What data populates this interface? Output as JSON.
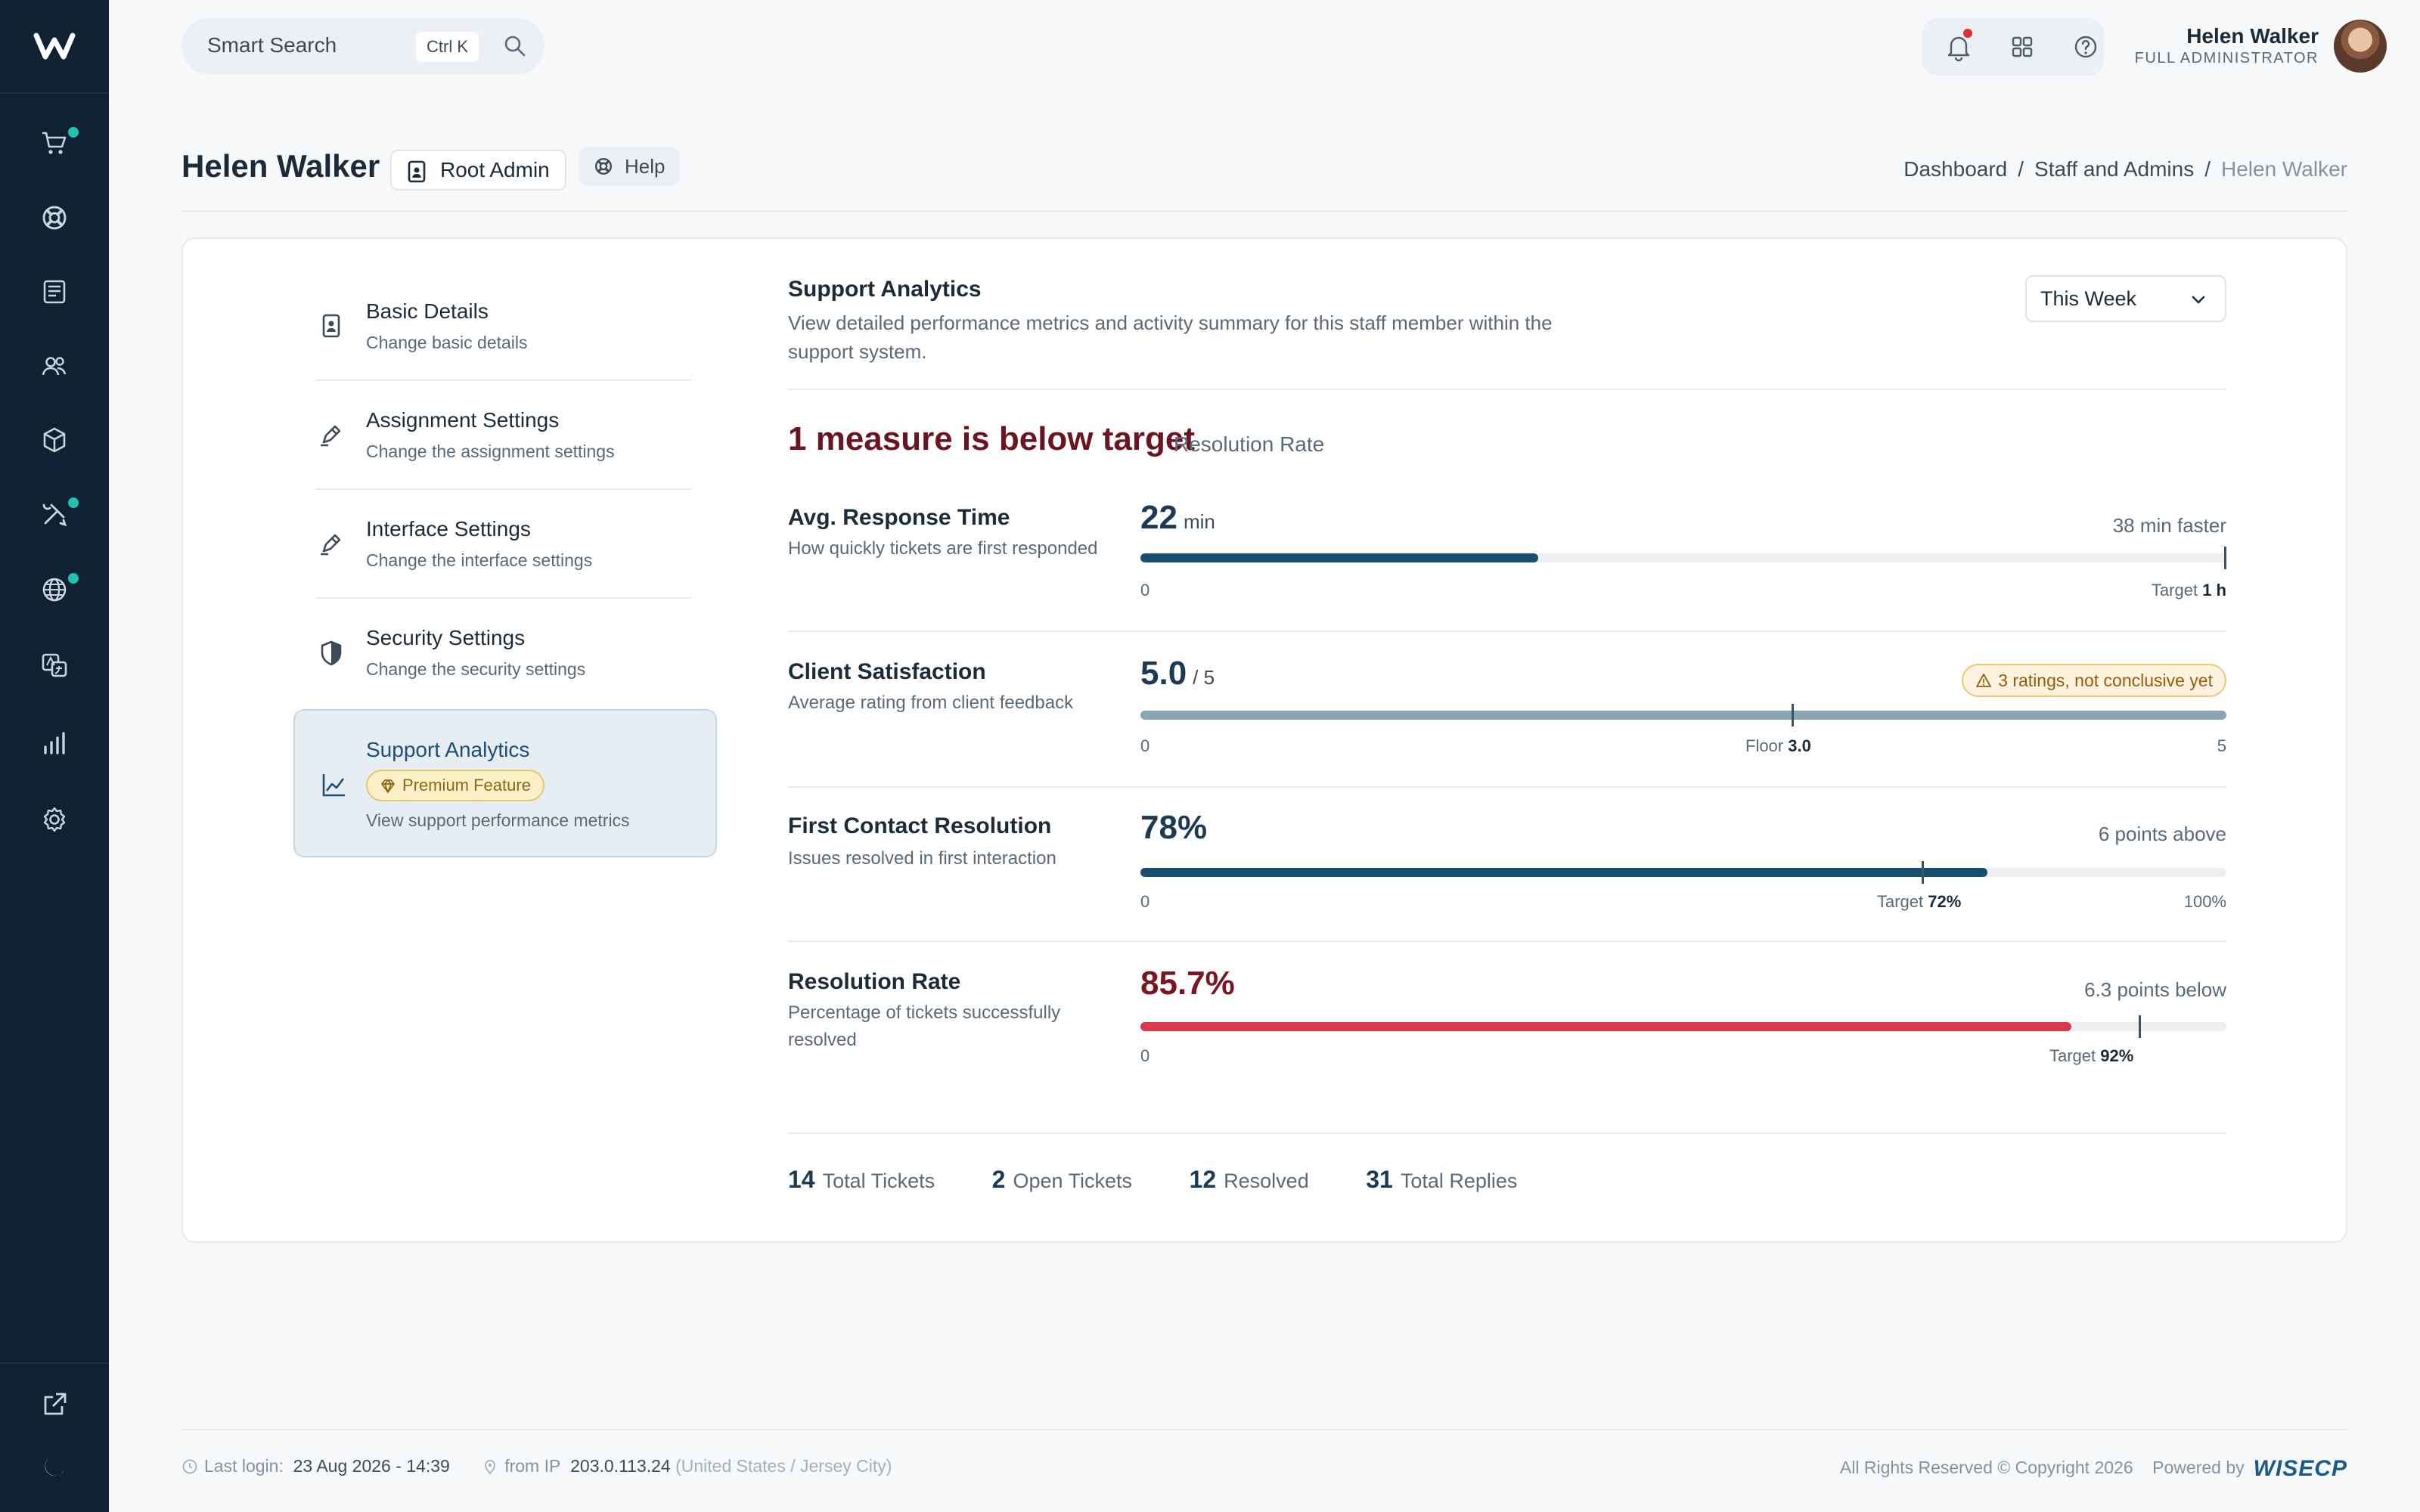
{
  "search": {
    "placeholder": "Smart Search",
    "shortcut": "Ctrl K"
  },
  "user": {
    "name": "Helen Walker",
    "role": "FULL ADMINISTRATOR"
  },
  "page": {
    "title": "Helen Walker",
    "role_badge": "Root Admin",
    "help_label": "Help"
  },
  "breadcrumb": [
    "Dashboard",
    "Staff and Admins",
    "Helen Walker"
  ],
  "menu": [
    {
      "title": "Basic Details",
      "subtitle": "Change basic details",
      "icon": "id-card-icon"
    },
    {
      "title": "Assignment Settings",
      "subtitle": "Change the assignment settings",
      "icon": "pen-icon"
    },
    {
      "title": "Interface Settings",
      "subtitle": "Change the interface settings",
      "icon": "pen-icon"
    },
    {
      "title": "Security Settings",
      "subtitle": "Change the security settings",
      "icon": "shield-icon"
    },
    {
      "title": "Support Analytics",
      "badge": "Premium Feature",
      "subtitle": "View support performance metrics",
      "icon": "chart-line-icon",
      "active": true
    }
  ],
  "analytics": {
    "title": "Support Analytics",
    "description": "View detailed performance metrics and activity summary for this staff member within the support system.",
    "period": "This Week",
    "alert_title": "1 measure is below target",
    "alert_tag": "Resolution Rate",
    "metrics": [
      {
        "name": "Avg. Response Time",
        "description": "How quickly tickets are first responded",
        "value": "22",
        "unit": "min",
        "note": "38 min faster",
        "fill_fraction": 0.366,
        "marker_fraction": 1.0,
        "scale_min": "0",
        "marker_label": "Target",
        "marker_value": "1 h",
        "fill_color": "#184d70"
      },
      {
        "name": "Client Satisfaction",
        "description": "Average rating from client feedback",
        "value": "5.0",
        "unit": "/ 5",
        "warning": "3 ratings, not conclusive yet",
        "fill_fraction": 1.0,
        "marker_fraction": 0.6,
        "scale_min": "0",
        "scale_max": "5",
        "marker_label": "Floor",
        "marker_value": "3.0",
        "fill_color": "#8aa6b4"
      },
      {
        "name": "First Contact Resolution",
        "description": "Issues resolved in first interaction",
        "value": "78%",
        "note": "6 points above",
        "fill_fraction": 0.78,
        "marker_fraction": 0.72,
        "scale_min": "0",
        "scale_max": "100%",
        "marker_label": "Target",
        "marker_value": "72%",
        "fill_color": "#184d70"
      },
      {
        "name": "Resolution Rate",
        "description": "Percentage of tickets successfully resolved",
        "value": "85.7%",
        "note": "6.3 points below",
        "fill_fraction": 0.857,
        "marker_fraction": 0.92,
        "scale_min": "0",
        "marker_label": "Target",
        "marker_value": "92%",
        "fill_color": "#d9394a"
      }
    ],
    "stats": [
      {
        "num": "14",
        "label": "Total Tickets"
      },
      {
        "num": "2",
        "label": "Open Tickets"
      },
      {
        "num": "12",
        "label": "Resolved"
      },
      {
        "num": "31",
        "label": "Total Replies"
      }
    ]
  },
  "footer": {
    "last_login_label": "Last login:",
    "last_login_value": "23 Aug 2026 - 14:39",
    "ip_label": "from IP",
    "ip_value": "203.0.113.24",
    "ip_location": "(United States / Jersey City)",
    "copyright": "All Rights Reserved © Copyright 2026",
    "powered_by": "Powered by",
    "brand": "WISECP"
  }
}
